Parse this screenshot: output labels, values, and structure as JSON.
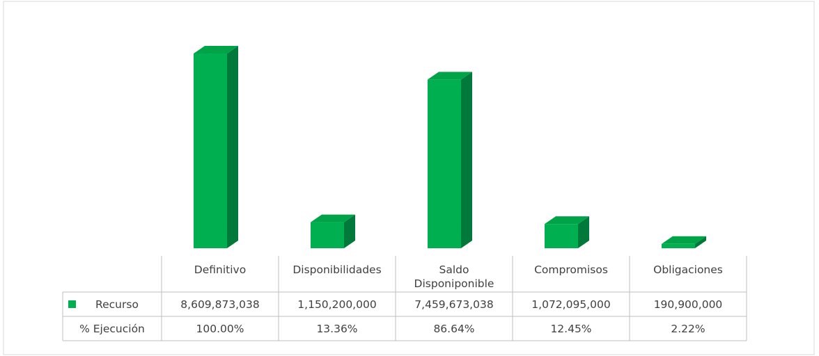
{
  "chart_data": {
    "type": "bar",
    "categories": [
      "Definitivo",
      "Disponibilidades",
      "Saldo Disponiponible",
      "Compromisos",
      "Obligaciones"
    ],
    "series": [
      {
        "name": "Recurso",
        "color": "#00b050",
        "values": [
          8609873038,
          1150200000,
          7459673038,
          1072095000,
          190900000
        ],
        "value_labels": [
          "8,609,873,038",
          "1,150,200,000",
          "7,459,673,038",
          "1,072,095,000",
          "190,900,000"
        ]
      }
    ],
    "data_table": {
      "rows": [
        {
          "name": "% Ejecución",
          "cells": [
            "100.00%",
            "13.36%",
            "86.64%",
            "12.45%",
            "2.22%"
          ]
        }
      ]
    }
  }
}
